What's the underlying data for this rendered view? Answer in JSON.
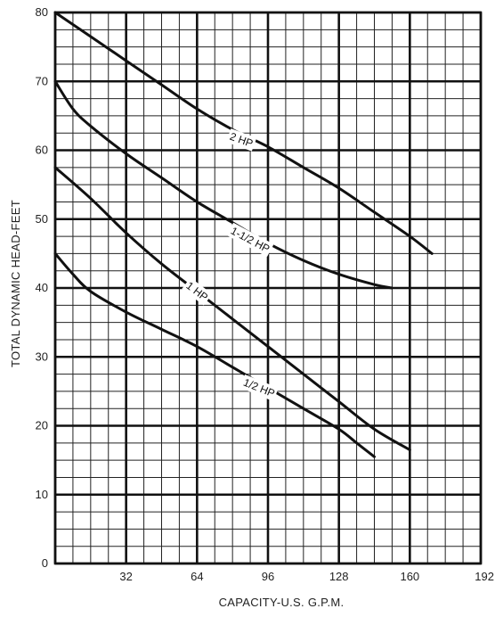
{
  "chart_data": {
    "type": "line",
    "title": "",
    "xlabel": "CAPACITY-U.S. G.P.M.",
    "ylabel": "TOTAL DYNAMIC HEAD-FEET",
    "xlim": [
      0,
      192
    ],
    "ylim": [
      0,
      80
    ],
    "x_ticks": [
      32,
      64,
      96,
      128,
      160,
      192
    ],
    "y_ticks": [
      0,
      10,
      20,
      30,
      40,
      50,
      60,
      70,
      80
    ],
    "grid": true,
    "legend": "none",
    "series": [
      {
        "name": "2 HP",
        "color": "#111111",
        "points": [
          [
            0,
            80
          ],
          [
            16,
            76.5
          ],
          [
            32,
            73
          ],
          [
            48,
            69.5
          ],
          [
            64,
            66
          ],
          [
            80,
            63
          ],
          [
            96,
            60.5
          ],
          [
            112,
            57.5
          ],
          [
            128,
            54.5
          ],
          [
            144,
            51
          ],
          [
            160,
            47.5
          ],
          [
            170,
            45
          ]
        ]
      },
      {
        "name": "1-1/2 HP",
        "color": "#111111",
        "points": [
          [
            0,
            70
          ],
          [
            8,
            66
          ],
          [
            16,
            63.5
          ],
          [
            32,
            59.5
          ],
          [
            48,
            56
          ],
          [
            64,
            52.5
          ],
          [
            80,
            49.5
          ],
          [
            96,
            46.5
          ],
          [
            112,
            44
          ],
          [
            128,
            42
          ],
          [
            144,
            40.5
          ],
          [
            152,
            40
          ]
        ]
      },
      {
        "name": "1 HP",
        "color": "#111111",
        "points": [
          [
            0,
            57.5
          ],
          [
            16,
            53
          ],
          [
            32,
            48
          ],
          [
            48,
            43.5
          ],
          [
            64,
            39.5
          ],
          [
            80,
            35.5
          ],
          [
            96,
            31.5
          ],
          [
            112,
            27.5
          ],
          [
            128,
            23.5
          ],
          [
            144,
            19.5
          ],
          [
            160,
            16.5
          ]
        ]
      },
      {
        "name": "1/2 HP",
        "color": "#111111",
        "points": [
          [
            0,
            45
          ],
          [
            8,
            42
          ],
          [
            16,
            39.5
          ],
          [
            32,
            36.5
          ],
          [
            48,
            34
          ],
          [
            64,
            31.5
          ],
          [
            80,
            28.5
          ],
          [
            96,
            25.5
          ],
          [
            112,
            22.5
          ],
          [
            128,
            19.5
          ],
          [
            136,
            17.5
          ],
          [
            144,
            15.5
          ]
        ]
      }
    ],
    "curve_labels": [
      {
        "text": "2 HP",
        "x": 84,
        "y": 61.5,
        "angle": 20
      },
      {
        "text": "1-1/2 HP",
        "x": 88,
        "y": 47,
        "angle": 28
      },
      {
        "text": "1 HP",
        "x": 64,
        "y": 39.5,
        "angle": 37
      },
      {
        "text": "1/2 HP",
        "x": 92,
        "y": 25.5,
        "angle": 22
      }
    ]
  }
}
